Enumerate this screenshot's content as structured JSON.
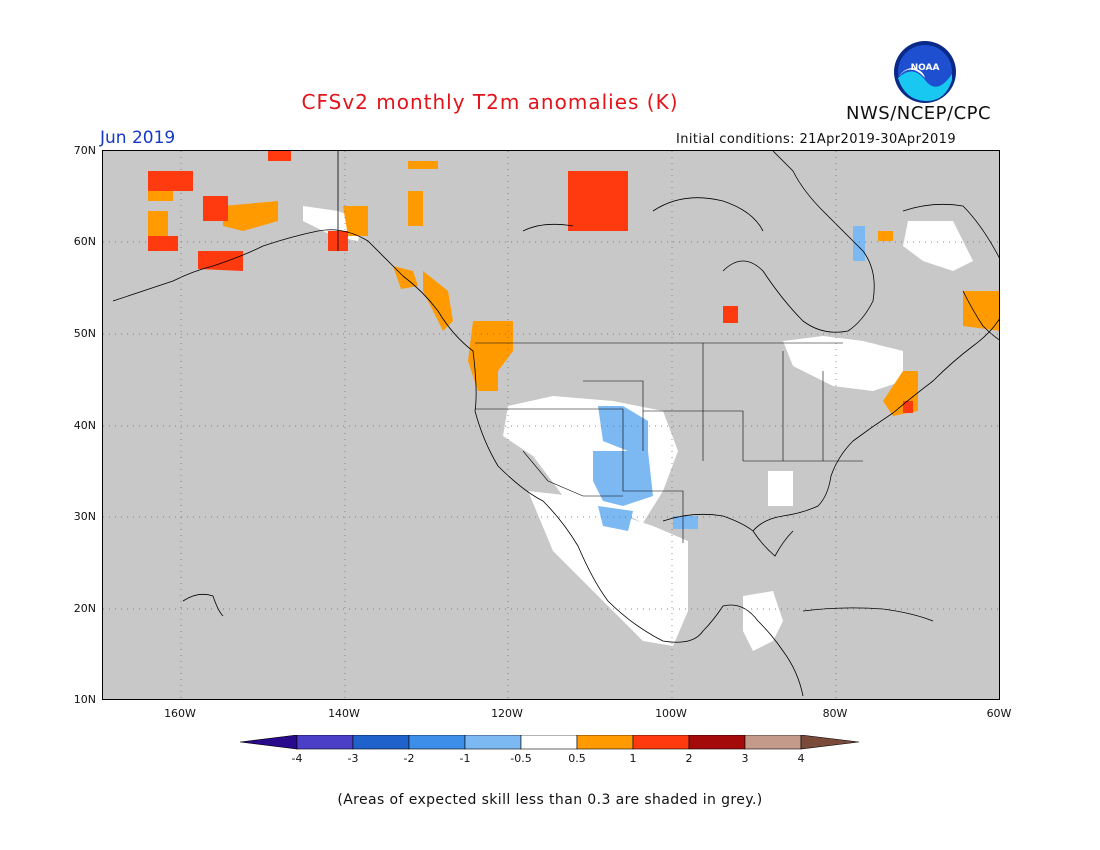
{
  "header": {
    "title": "CFSv2 monthly T2m anomalies (K)",
    "agency": "NWS/NCEP/CPC",
    "logo_text": "NOAA",
    "month": "Jun 2019",
    "initial_conditions": "Initial conditions: 21Apr2019-30Apr2019"
  },
  "map": {
    "lat_labels": [
      "70N",
      "60N",
      "50N",
      "40N",
      "30N",
      "20N",
      "10N"
    ],
    "lon_labels": [
      "160W",
      "140W",
      "120W",
      "100W",
      "80W",
      "60W"
    ],
    "lat_range": [
      10,
      70
    ],
    "lon_range": [
      -170,
      -60
    ],
    "grid": "dotted",
    "background_color": "#c8c8c8"
  },
  "colorbar": {
    "labels": [
      "-4",
      "-3",
      "-2",
      "-1",
      "-0.5",
      "0.5",
      "1",
      "2",
      "3",
      "4"
    ],
    "colors": [
      "#2a0a8c",
      "#4b3fc7",
      "#1f62cc",
      "#3d8ee8",
      "#7cb8f2",
      "#ffffff",
      "#ff9b00",
      "#ff3a0f",
      "#a50a0a",
      "#c49a8a",
      "#7a4a3a"
    ]
  },
  "footnote": "(Areas of expected skill less than 0.3 are shaded in grey.)"
}
